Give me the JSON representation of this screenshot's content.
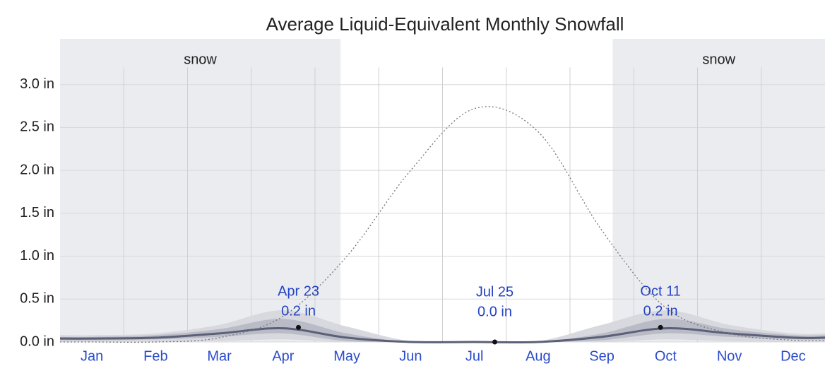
{
  "chart_data": {
    "type": "area",
    "title": "Average Liquid-Equivalent Monthly Snowfall",
    "categories": [
      "Jan",
      "Feb",
      "Mar",
      "Apr",
      "May",
      "Jun",
      "Jul",
      "Aug",
      "Sep",
      "Oct",
      "Nov",
      "Dec"
    ],
    "xlim": [
      0,
      12
    ],
    "ylim": [
      0,
      3.5
    ],
    "yticks": [
      {
        "value": 0,
        "label": "0.0 in"
      },
      {
        "value": 0.5,
        "label": "0.5 in"
      },
      {
        "value": 1,
        "label": "1.0 in"
      },
      {
        "value": 1.5,
        "label": "1.5 in"
      },
      {
        "value": 2,
        "label": "2.0 in"
      },
      {
        "value": 2.5,
        "label": "2.5 in"
      },
      {
        "value": 3,
        "label": "3.0 in"
      }
    ],
    "grid": true,
    "regions": [
      {
        "label": "snow",
        "start": 0,
        "end": 4.4,
        "color": "#ebecf0"
      },
      {
        "label": "snow",
        "start": 8.67,
        "end": 12,
        "color": "#ebecf0"
      }
    ],
    "series": [
      {
        "style": "band",
        "color": "#d8d9df",
        "values": [
          0.08,
          0.1,
          0.2,
          0.37,
          0.18,
          0.01,
          0,
          0.01,
          0.2,
          0.37,
          0.2,
          0.1
        ],
        "low": [
          0,
          0,
          0.01,
          0.03,
          0,
          0,
          0,
          0,
          0,
          0.03,
          0.01,
          0
        ]
      },
      {
        "style": "band",
        "color": "#b9bbc6",
        "values": [
          0.06,
          0.08,
          0.15,
          0.27,
          0.1,
          0,
          0,
          0,
          0.1,
          0.27,
          0.15,
          0.08
        ],
        "low": [
          0.02,
          0.03,
          0.06,
          0.1,
          0.01,
          0,
          0,
          0,
          0.02,
          0.1,
          0.06,
          0.03
        ]
      },
      {
        "style": "line",
        "color": "#5b6078",
        "values": [
          0.04,
          0.05,
          0.1,
          0.16,
          0.05,
          0,
          0,
          0,
          0.06,
          0.16,
          0.1,
          0.05
        ]
      },
      {
        "style": "dotted",
        "color": "#777777",
        "values": [
          0,
          0,
          0.05,
          0.3,
          1.0,
          2.0,
          2.72,
          2.45,
          1.3,
          0.4,
          0.1,
          0.02
        ]
      }
    ],
    "annotations": [
      {
        "x": 3.74,
        "y": 0.17,
        "date": "Apr 23",
        "value_label": "0.2 in"
      },
      {
        "x": 6.82,
        "y": 0,
        "date": "Jul 25",
        "value_label": "0.0 in"
      },
      {
        "x": 9.42,
        "y": 0.17,
        "date": "Oct 11",
        "value_label": "0.2 in"
      }
    ]
  }
}
